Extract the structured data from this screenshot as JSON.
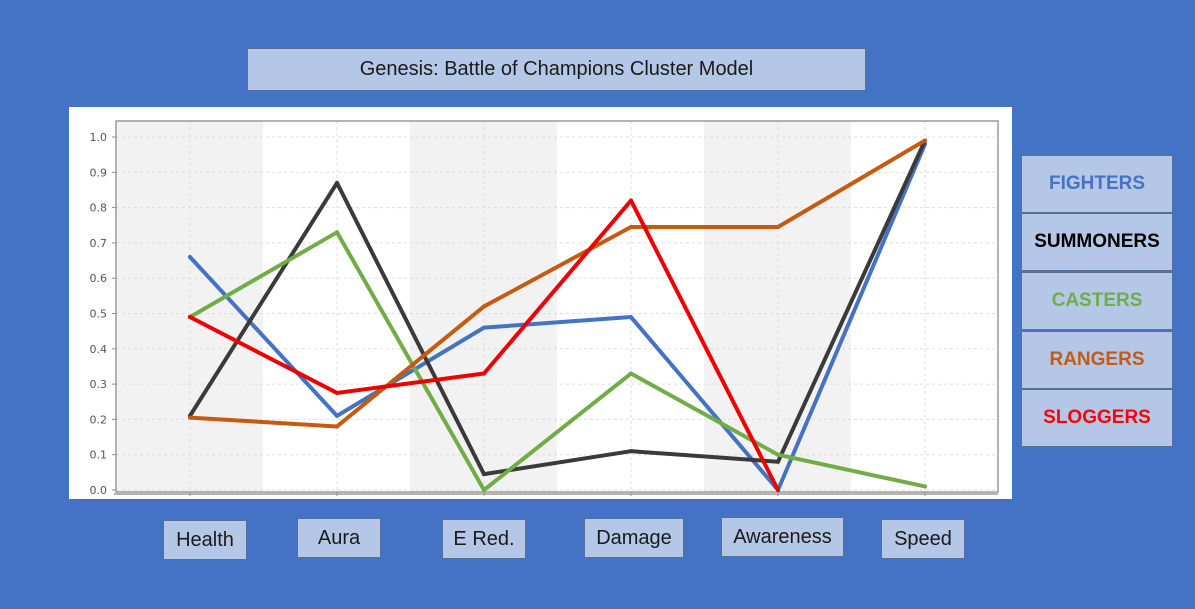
{
  "title": "Genesis: Battle of Champions Cluster Model",
  "chart_data": {
    "type": "line",
    "title": "Genesis: Battle of Champions Cluster Model",
    "categories": [
      "Health",
      "Aura",
      "E Red.",
      "Damage",
      "Awareness",
      "Speed"
    ],
    "ylim": [
      0,
      1.0
    ],
    "yticks": [
      "0.0",
      "0.1",
      "0.2",
      "0.3",
      "0.4",
      "0.5",
      "0.6",
      "0.7",
      "0.8",
      "0.9",
      "1.0"
    ],
    "grid": true,
    "legend_position": "right",
    "series": [
      {
        "name": "FIGHTERS",
        "color": "#4472c4",
        "values": [
          0.66,
          0.21,
          0.46,
          0.49,
          0.0,
          0.98
        ]
      },
      {
        "name": "SUMMONERS",
        "color": "#000000",
        "line_color": "#3a3a3a",
        "values": [
          0.21,
          0.87,
          0.045,
          0.11,
          0.08,
          0.99
        ]
      },
      {
        "name": "CASTERS",
        "color": "#70ad47",
        "values": [
          0.49,
          0.73,
          0.0,
          0.33,
          0.1,
          0.01
        ]
      },
      {
        "name": "RANGERS",
        "color": "#c55a11",
        "values": [
          0.205,
          0.18,
          0.52,
          0.745,
          0.745,
          0.99
        ]
      },
      {
        "name": "SLOGGERS",
        "color": "#ff0000",
        "line_color": "#ee0000",
        "values": [
          0.49,
          0.275,
          0.33,
          0.82,
          0.0,
          null
        ]
      }
    ]
  }
}
